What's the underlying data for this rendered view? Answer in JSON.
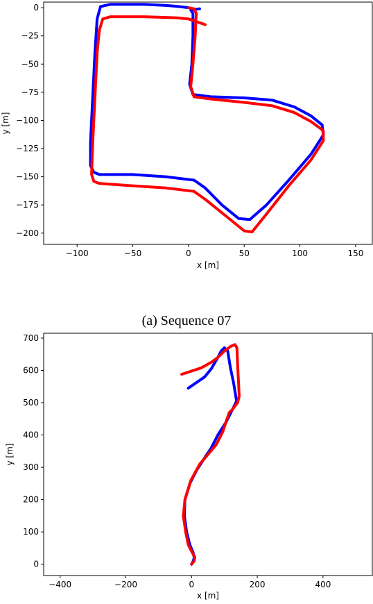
{
  "chart_data": [
    {
      "type": "line",
      "caption": "(a) Sequence 07",
      "xlabel": "x [m]",
      "ylabel": "y [m]",
      "xlim": [
        -130,
        165
      ],
      "ylim": [
        -210,
        5
      ],
      "xticks": [
        -100,
        -50,
        0,
        50,
        100,
        150
      ],
      "xtick_labels": [
        "−100",
        "−50",
        "0",
        "50",
        "100",
        "150"
      ],
      "yticks": [
        0,
        -25,
        -50,
        -75,
        -100,
        -125,
        -150,
        -175,
        -200
      ],
      "ytick_labels": [
        "0",
        "−25",
        "−50",
        "−75",
        "−100",
        "−125",
        "−150",
        "−175",
        "−200"
      ],
      "grid": false,
      "series": [
        {
          "color": "#0000ff",
          "points": [
            [
              10,
              -1
            ],
            [
              2,
              -2
            ],
            [
              4,
              -5
            ],
            [
              4,
              -25
            ],
            [
              3,
              -50
            ],
            [
              1,
              -68
            ],
            [
              4,
              -77
            ],
            [
              20,
              -79
            ],
            [
              50,
              -80
            ],
            [
              75,
              -82
            ],
            [
              95,
              -88
            ],
            [
              110,
              -96
            ],
            [
              120,
              -104
            ],
            [
              121,
              -113
            ],
            [
              110,
              -130
            ],
            [
              90,
              -153
            ],
            [
              70,
              -175
            ],
            [
              55,
              -188
            ],
            [
              45,
              -187
            ],
            [
              30,
              -175
            ],
            [
              15,
              -160
            ],
            [
              5,
              -153
            ],
            [
              -20,
              -150
            ],
            [
              -50,
              -148
            ],
            [
              -80,
              -148
            ],
            [
              -85,
              -146
            ],
            [
              -88,
              -140
            ],
            [
              -88,
              -120
            ],
            [
              -86,
              -80
            ],
            [
              -84,
              -40
            ],
            [
              -82,
              -10
            ],
            [
              -79,
              1
            ],
            [
              -70,
              3
            ],
            [
              -40,
              3
            ],
            [
              -20,
              2
            ],
            [
              -8,
              1
            ],
            [
              0,
              0
            ]
          ]
        },
        {
          "color": "#ff0000",
          "points": [
            [
              0,
              0
            ],
            [
              5,
              -1
            ],
            [
              7,
              -5
            ],
            [
              6,
              -25
            ],
            [
              4,
              -50
            ],
            [
              2,
              -70
            ],
            [
              5,
              -79
            ],
            [
              20,
              -81
            ],
            [
              50,
              -84
            ],
            [
              75,
              -87
            ],
            [
              95,
              -93
            ],
            [
              110,
              -101
            ],
            [
              121,
              -109
            ],
            [
              121,
              -118
            ],
            [
              110,
              -135
            ],
            [
              90,
              -158
            ],
            [
              70,
              -183
            ],
            [
              57,
              -199
            ],
            [
              50,
              -198
            ],
            [
              30,
              -182
            ],
            [
              15,
              -170
            ],
            [
              5,
              -163
            ],
            [
              -20,
              -160
            ],
            [
              -50,
              -158
            ],
            [
              -80,
              -156
            ],
            [
              -85,
              -154
            ],
            [
              -87,
              -148
            ],
            [
              -86,
              -120
            ],
            [
              -84,
              -80
            ],
            [
              -82,
              -40
            ],
            [
              -80,
              -20
            ],
            [
              -77,
              -10
            ],
            [
              -70,
              -8
            ],
            [
              -40,
              -8
            ],
            [
              -10,
              -9
            ],
            [
              0,
              -10
            ],
            [
              15,
              -15
            ]
          ]
        }
      ]
    },
    {
      "type": "line",
      "xlabel": "x [m]",
      "ylabel": "y [m]",
      "xlim": [
        -450,
        550
      ],
      "ylim": [
        -35,
        715
      ],
      "xticks": [
        -400,
        -200,
        0,
        200,
        400
      ],
      "xtick_labels": [
        "−400",
        "−200",
        "0",
        "200",
        "400"
      ],
      "yticks": [
        0,
        100,
        200,
        300,
        400,
        500,
        600,
        700
      ],
      "ytick_labels": [
        "0",
        "100",
        "200",
        "300",
        "400",
        "500",
        "600",
        "700"
      ],
      "grid": false,
      "series": [
        {
          "color": "#0000ff",
          "points": [
            [
              0,
              0
            ],
            [
              5,
              10
            ],
            [
              8,
              20
            ],
            [
              5,
              35
            ],
            [
              -5,
              60
            ],
            [
              -15,
              100
            ],
            [
              -22,
              150
            ],
            [
              -20,
              200
            ],
            [
              -5,
              250
            ],
            [
              15,
              290
            ],
            [
              40,
              330
            ],
            [
              60,
              360
            ],
            [
              80,
              400
            ],
            [
              105,
              440
            ],
            [
              125,
              480
            ],
            [
              137,
              505
            ],
            [
              128,
              560
            ],
            [
              118,
              610
            ],
            [
              110,
              660
            ],
            [
              100,
              670
            ],
            [
              90,
              660
            ],
            [
              80,
              640
            ],
            [
              60,
              605
            ],
            [
              40,
              580
            ],
            [
              -10,
              545
            ]
          ]
        },
        {
          "color": "#ff0000",
          "points": [
            [
              0,
              0
            ],
            [
              8,
              10
            ],
            [
              10,
              22
            ],
            [
              0,
              40
            ],
            [
              -10,
              60
            ],
            [
              -18,
              100
            ],
            [
              -25,
              150
            ],
            [
              -20,
              200
            ],
            [
              -2,
              260
            ],
            [
              25,
              310
            ],
            [
              50,
              340
            ],
            [
              75,
              370
            ],
            [
              95,
              410
            ],
            [
              108,
              450
            ],
            [
              115,
              470
            ],
            [
              125,
              480
            ],
            [
              140,
              500
            ],
            [
              145,
              520
            ],
            [
              143,
              560
            ],
            [
              140,
              620
            ],
            [
              138,
              670
            ],
            [
              132,
              680
            ],
            [
              120,
              675
            ],
            [
              100,
              660
            ],
            [
              80,
              640
            ],
            [
              60,
              625
            ],
            [
              30,
              608
            ],
            [
              -30,
              588
            ]
          ]
        }
      ]
    }
  ]
}
